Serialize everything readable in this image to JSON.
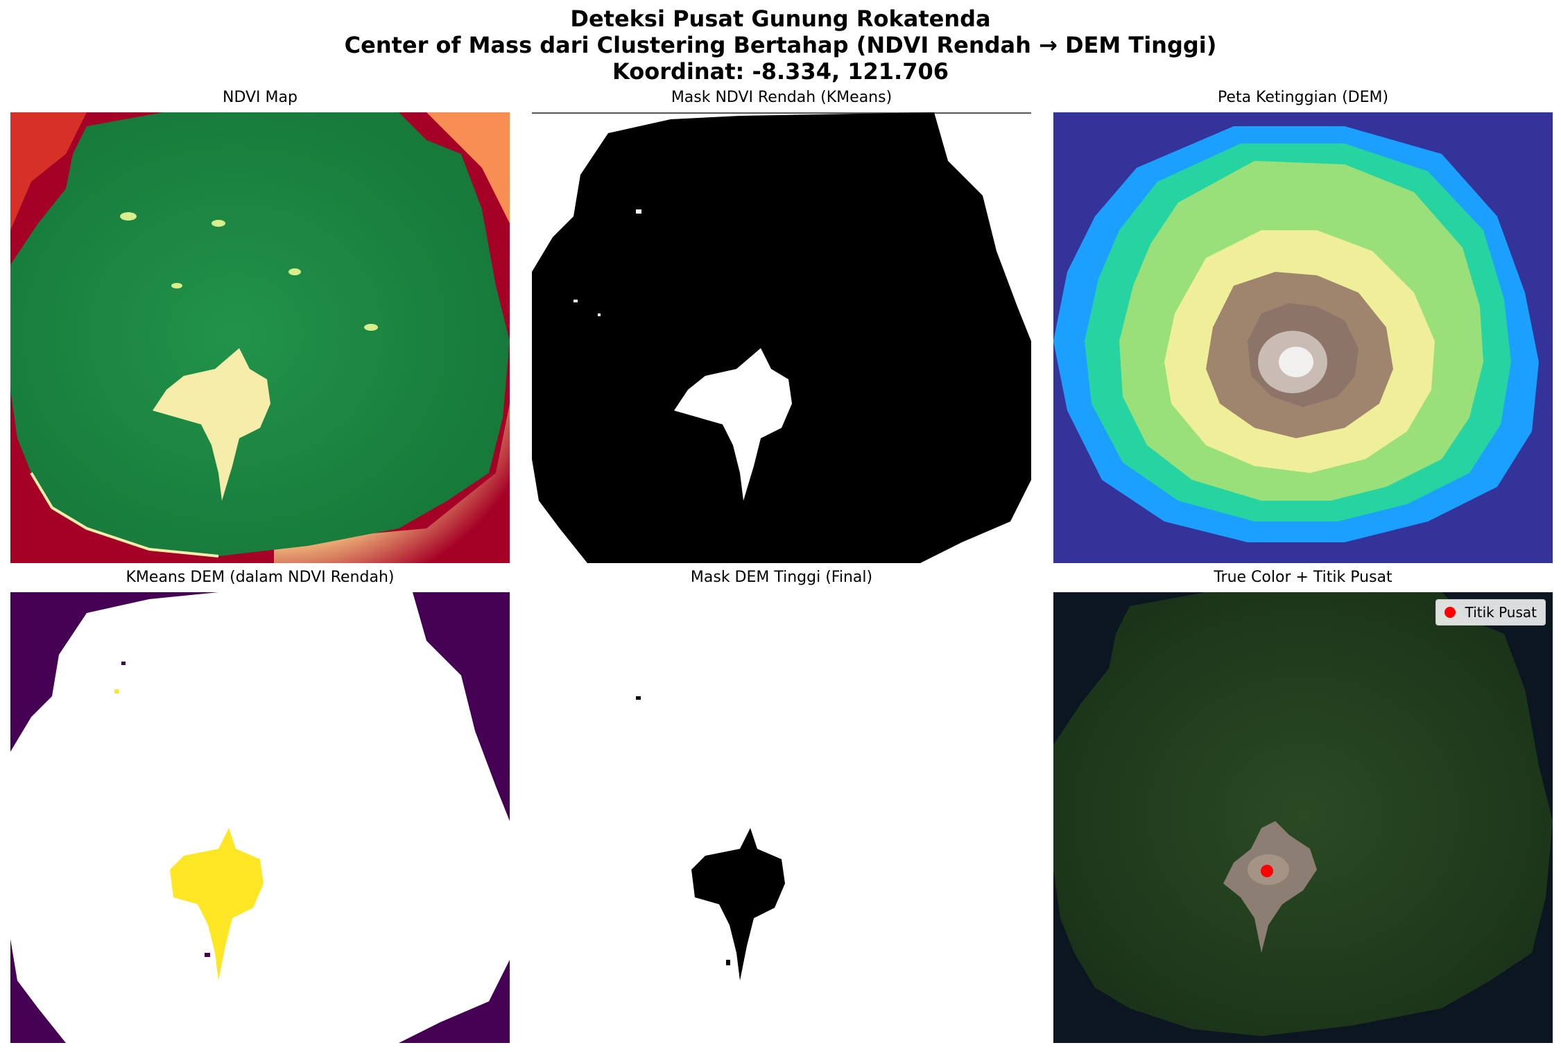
{
  "figure": {
    "title_lines": [
      "Deteksi Pusat Gunung Rokatenda",
      "Center of Mass dari Clustering Bertahap (NDVI Rendah → DEM Tinggi)",
      "Koordinat: -8.334, 121.706"
    ]
  },
  "panels": [
    {
      "title": "NDVI Map",
      "colormap": "RdYlGn"
    },
    {
      "title": "Mask NDVI Rendah (KMeans)",
      "colormap": "gray"
    },
    {
      "title": "Peta Ketinggian (DEM)",
      "colormap": "terrain"
    },
    {
      "title": "KMeans DEM (dalam NDVI Rendah)",
      "colormap": "viridis"
    },
    {
      "title": "Mask DEM Tinggi (Final)",
      "colormap": "gray"
    },
    {
      "title": "True Color + Titik Pusat",
      "colormap": "rgb"
    }
  ],
  "legend": {
    "label": "Titik Pusat",
    "marker_color": "#ff0000"
  },
  "colors": {
    "ndvi_water": "#a50026",
    "ndvi_vegetation": "#1a8a43",
    "ndvi_bare": "#f6edab",
    "dem_sea": "#333399",
    "dem_low": "#1ca0ff",
    "dem_mid": "#9ae07a",
    "dem_high": "#efef9a",
    "dem_peak": "#8c7468",
    "viridis_low": "#440154",
    "viridis_high": "#fde725",
    "truecolor_sea": "#0c1620",
    "truecolor_forest": "#1f3a1c",
    "truecolor_crater": "#8d7e73"
  },
  "center_coordinate": {
    "lat": -8.334,
    "lon": 121.706
  }
}
